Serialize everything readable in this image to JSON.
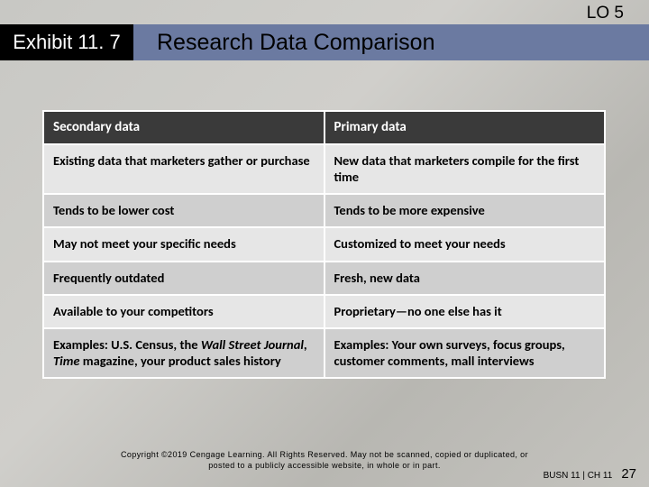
{
  "lo_tag": "LO 5",
  "exhibit_label": "Exhibit 11. 7",
  "title": "Research Data Comparison",
  "table": {
    "headers": [
      "Secondary data",
      "Primary data"
    ],
    "rows": [
      [
        "Existing data that marketers gather or purchase",
        "New data that marketers compile for the first time"
      ],
      [
        "Tends to be lower cost",
        "Tends to be more expensive"
      ],
      [
        "May not meet your specific needs",
        "Customized to meet your needs"
      ],
      [
        "Frequently outdated",
        "Fresh, new data"
      ],
      [
        "Available to your competitors",
        "Proprietary—no one else has it"
      ],
      [
        "Examples: U.S. Census, the <i>Wall Street Journal</i>, <i>Time</i> magazine, your product sales history",
        "Examples: Your own surveys, focus groups, customer comments, mall interviews"
      ]
    ]
  },
  "copyright_line1": "Copyright ©2019 Cengage Learning. All Rights Reserved. May not be scanned, copied or duplicated, or",
  "copyright_line2": "posted to a publicly accessible website, in whole or in part.",
  "footer_ref": "BUSN 11 | CH 11",
  "page_number": "27"
}
